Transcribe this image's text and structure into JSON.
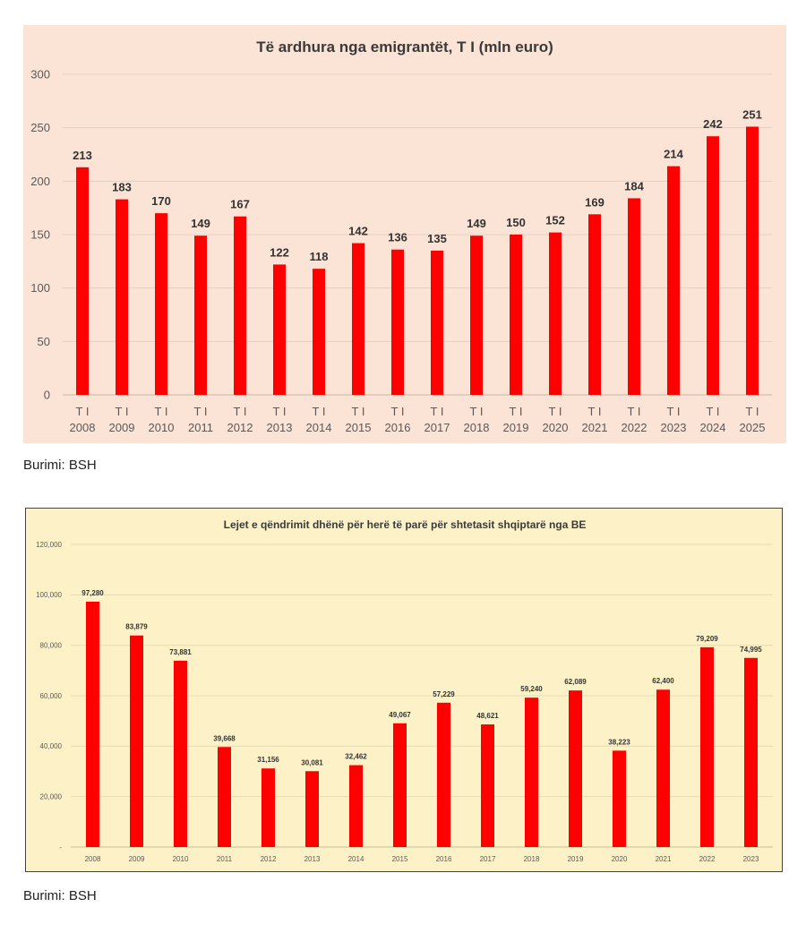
{
  "colors": {
    "bar": "#ff0000",
    "chart1_bg": "#fbe4d6",
    "chart2_bg": "#fdf2c7",
    "grid": "#d9d0c8"
  },
  "captions": {
    "source1": "Burimi: BSH",
    "source2": "Burimi: BSH"
  },
  "chart_data": [
    {
      "type": "bar",
      "title": "Të ardhura nga emigrantët, T I (mln euro)",
      "tick_prefix": "T I",
      "categories": [
        "2008",
        "2009",
        "2010",
        "2011",
        "2012",
        "2013",
        "2014",
        "2015",
        "2016",
        "2017",
        "2018",
        "2019",
        "2020",
        "2021",
        "2022",
        "2023",
        "2024",
        "2025"
      ],
      "values": [
        213,
        183,
        170,
        149,
        167,
        122,
        118,
        142,
        136,
        135,
        149,
        150,
        152,
        169,
        184,
        214,
        242,
        251
      ],
      "ylim": [
        0,
        300
      ],
      "yticks": [
        "0",
        "50",
        "100",
        "150",
        "200",
        "250",
        "300"
      ],
      "grid": true,
      "data_labels": true
    },
    {
      "type": "bar",
      "title": "Lejet e qëndrimit dhënë për herë të parë për shtetasit shqiptarë nga BE",
      "categories": [
        "2008",
        "2009",
        "2010",
        "2011",
        "2012",
        "2013",
        "2014",
        "2015",
        "2016",
        "2017",
        "2018",
        "2019",
        "2020",
        "2021",
        "2022",
        "2023"
      ],
      "values": [
        97280,
        83879,
        73881,
        39668,
        31156,
        30081,
        32462,
        49067,
        57229,
        48621,
        59240,
        62089,
        38223,
        62400,
        79209,
        74995
      ],
      "value_labels": [
        "97,280",
        "83,879",
        "73,881",
        "39,668",
        "31,156",
        "30,081",
        "32,462",
        "49,067",
        "57,229",
        "48,621",
        "59,240",
        "62,089",
        "38,223",
        "62,400",
        "79,209",
        "74,995"
      ],
      "ylim": [
        0,
        120000
      ],
      "yticks": [
        "-",
        "20,000",
        "40,000",
        "60,000",
        "80,000",
        "100,000",
        "120,000"
      ],
      "grid": true,
      "data_labels": true
    }
  ]
}
